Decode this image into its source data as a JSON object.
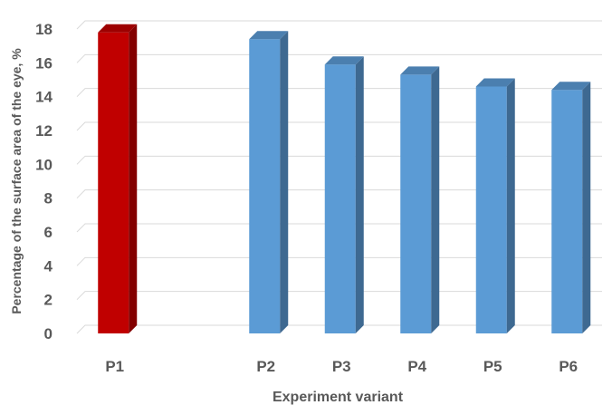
{
  "chart_data": {
    "type": "bar",
    "style": "3d-column",
    "categories": [
      "P1",
      "",
      "P2",
      "P3",
      "P4",
      "P5",
      "P6"
    ],
    "values": [
      17.8,
      null,
      17.4,
      15.9,
      15.3,
      14.6,
      14.4
    ],
    "bar_colors": [
      "#c00000",
      null,
      "#5b9bd5",
      "#5b9bd5",
      "#5b9bd5",
      "#5b9bd5",
      "#5b9bd5"
    ],
    "ylabel": "Percentage of the surface area of the eye, %",
    "xlabel": "Experiment variant",
    "ylim": [
      0,
      18
    ],
    "yticks": [
      0,
      2,
      4,
      6,
      8,
      10,
      12,
      14,
      16,
      18
    ],
    "grid": true
  }
}
